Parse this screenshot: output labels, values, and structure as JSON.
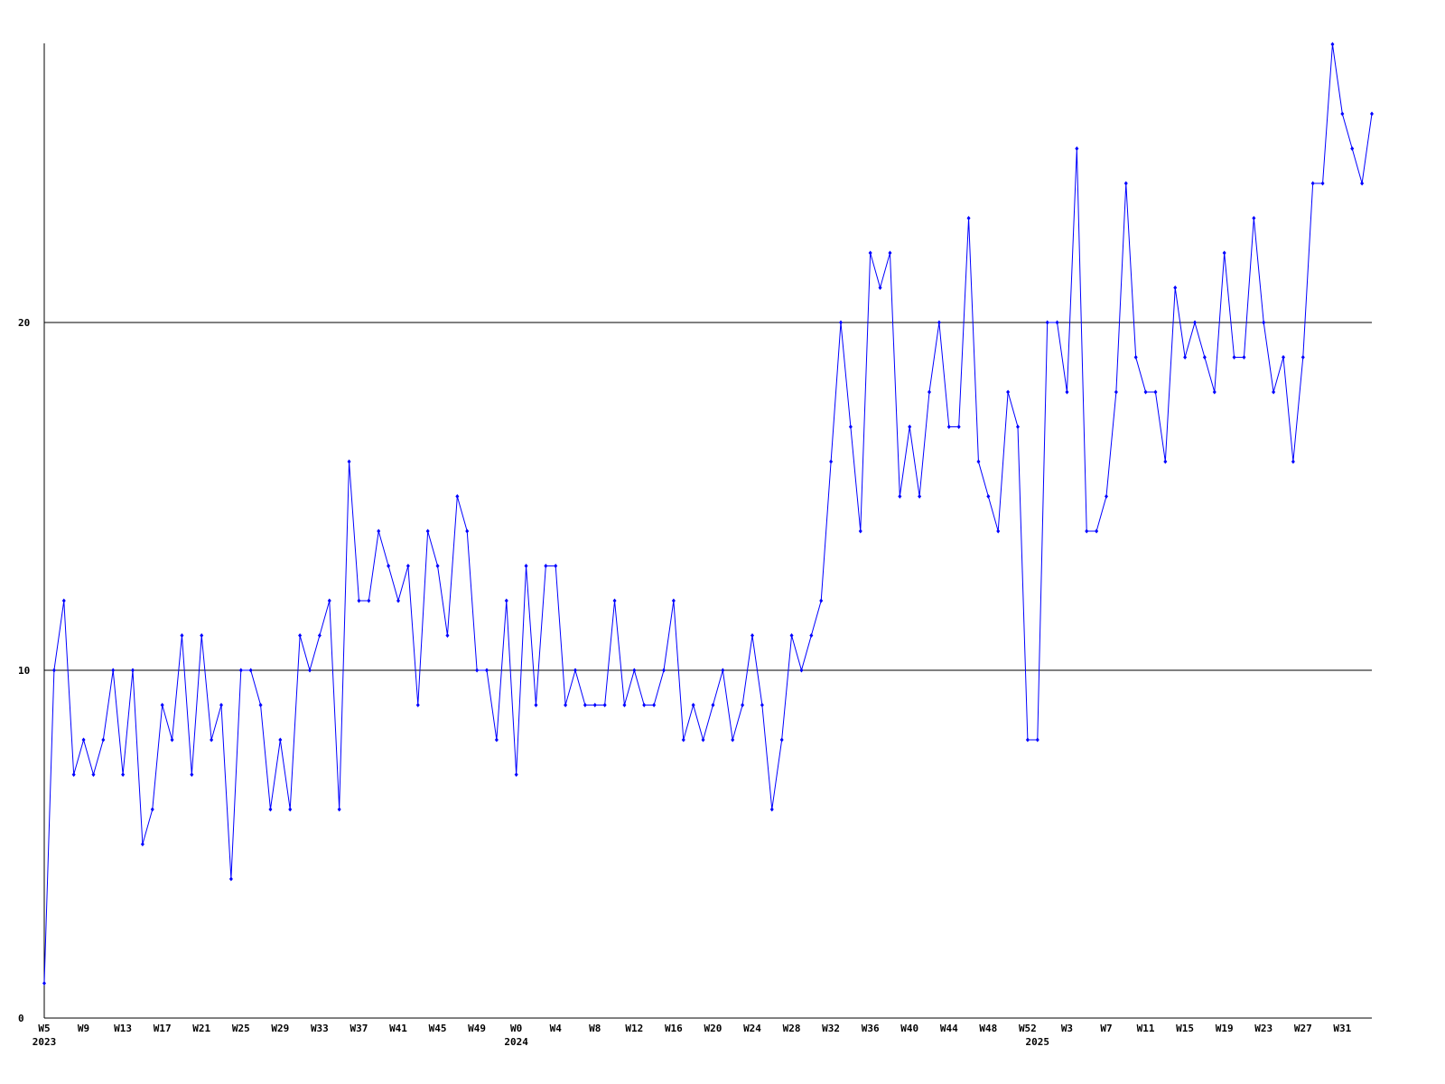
{
  "chart_data": {
    "type": "line",
    "categories": [
      "W5",
      null,
      null,
      null,
      "W9",
      null,
      null,
      null,
      "W13",
      null,
      null,
      null,
      "W17",
      null,
      null,
      null,
      "W21",
      null,
      null,
      null,
      "W25",
      null,
      null,
      null,
      "W29",
      null,
      null,
      null,
      "W33",
      null,
      null,
      null,
      "W37",
      null,
      null,
      null,
      "W41",
      null,
      null,
      null,
      "W45",
      null,
      null,
      null,
      "W49",
      null,
      null,
      null,
      "W0",
      null,
      null,
      null,
      "W4",
      null,
      null,
      null,
      "W8",
      null,
      null,
      null,
      "W12",
      null,
      null,
      null,
      "W16",
      null,
      null,
      null,
      "W20",
      null,
      null,
      null,
      "W24",
      null,
      null,
      null,
      "W28",
      null,
      null,
      null,
      "W32",
      null,
      null,
      null,
      "W36",
      null,
      null,
      null,
      "W40",
      null,
      null,
      null,
      "W44",
      null,
      null,
      null,
      "W48",
      null,
      null,
      null,
      "W52",
      null,
      null,
      null,
      "W3",
      null,
      null,
      null,
      "W7",
      null,
      null,
      null,
      "W11",
      null,
      null,
      null,
      "W15",
      null,
      null,
      null,
      "W19",
      null,
      null,
      null,
      "W23",
      null,
      null,
      null,
      "W27",
      null,
      null,
      null,
      "W31",
      null,
      null,
      null
    ],
    "year_labels": [
      "2023",
      null,
      null,
      null,
      null,
      null,
      null,
      null,
      null,
      null,
      null,
      null,
      null,
      null,
      null,
      null,
      null,
      null,
      null,
      null,
      null,
      null,
      null,
      null,
      null,
      null,
      null,
      null,
      null,
      null,
      null,
      null,
      null,
      null,
      null,
      null,
      null,
      null,
      null,
      null,
      null,
      null,
      null,
      null,
      null,
      null,
      null,
      null,
      "2024",
      null,
      null,
      null,
      null,
      null,
      null,
      null,
      null,
      null,
      null,
      null,
      null,
      null,
      null,
      null,
      null,
      null,
      null,
      null,
      null,
      null,
      null,
      null,
      null,
      null,
      null,
      null,
      null,
      null,
      null,
      null,
      null,
      null,
      null,
      null,
      null,
      null,
      null,
      null,
      null,
      null,
      null,
      null,
      null,
      null,
      null,
      null,
      null,
      null,
      null,
      null,
      null,
      "2025",
      null,
      null,
      null,
      null,
      null,
      null,
      null,
      null,
      null,
      null,
      null,
      null,
      null,
      null,
      null,
      null,
      null,
      null,
      null,
      null,
      null,
      null,
      null,
      null,
      null,
      null,
      null,
      null,
      null,
      null,
      null,
      null,
      null,
      null
    ],
    "series": [
      {
        "color": "#0000ff",
        "values": [
          1,
          10,
          12,
          7,
          8,
          7,
          8,
          10,
          7,
          10,
          5,
          6,
          9,
          8,
          11,
          7,
          11,
          8,
          9,
          4,
          10,
          10,
          9,
          6,
          8,
          6,
          11,
          10,
          11,
          12,
          6,
          16,
          12,
          12,
          14,
          13,
          12,
          13,
          9,
          14,
          13,
          11,
          15,
          14,
          10,
          10,
          8,
          12,
          7,
          13,
          9,
          13,
          13,
          9,
          10,
          9,
          9,
          9,
          12,
          9,
          10,
          9,
          9,
          10,
          12,
          8,
          9,
          8,
          9,
          10,
          8,
          9,
          11,
          9,
          6,
          8,
          11,
          10,
          11,
          12,
          16,
          20,
          17,
          14,
          22,
          21,
          22,
          15,
          17,
          15,
          18,
          20,
          17,
          17,
          23,
          16,
          15,
          14,
          18,
          17,
          8,
          8,
          20,
          20,
          18,
          25,
          14,
          14,
          15,
          18,
          24,
          19,
          18,
          18,
          16,
          21,
          19,
          20,
          19,
          18,
          22,
          19,
          19,
          23,
          20,
          18,
          19,
          16,
          19,
          24,
          24,
          28,
          26,
          25,
          24,
          26
        ]
      }
    ],
    "ylim": [
      0,
      28
    ],
    "yticks": [
      0,
      10,
      20
    ],
    "grid": true
  }
}
